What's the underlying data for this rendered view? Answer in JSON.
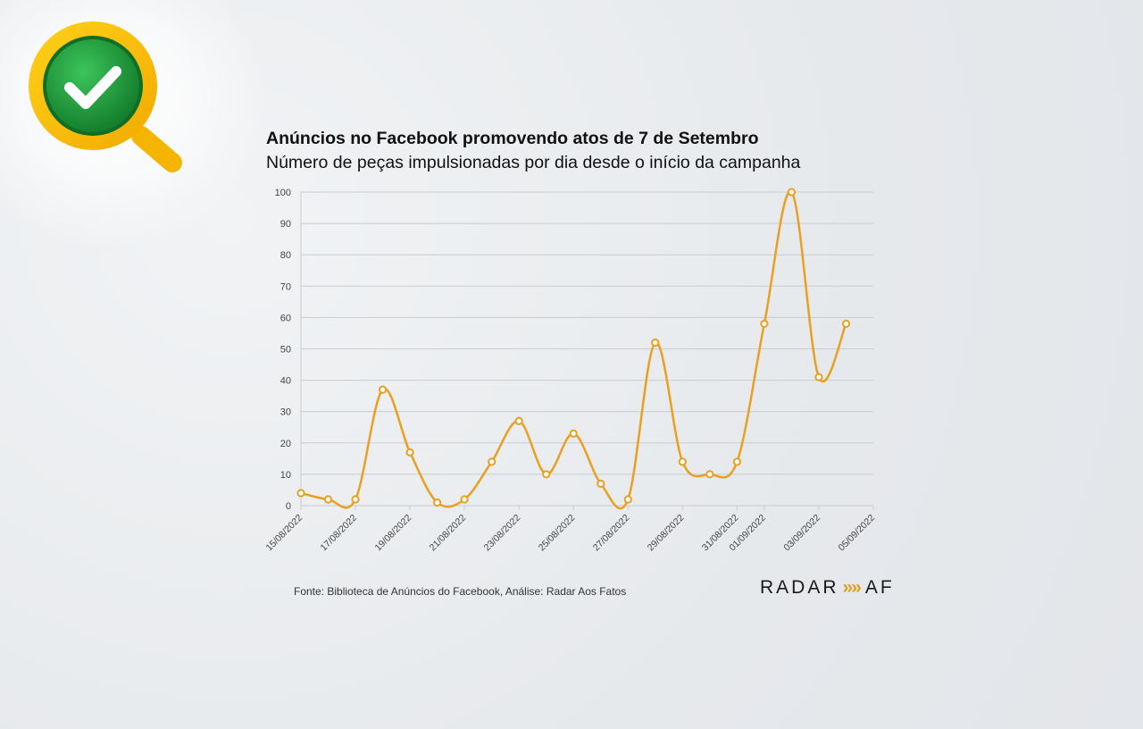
{
  "title": "Anúncios no Facebook promovendo atos de 7 de Setembro",
  "subtitle": "Número de peças impulsionadas por dia desde o início da campanha",
  "source": "Fonte: Biblioteca de Anúncios do Facebook, Análise: Radar Aos Fatos",
  "logo": {
    "text_left": "RADAR",
    "text_right": "AF",
    "accent": "#e0a020"
  },
  "badge": {
    "icon": "check-magnifier-icon",
    "ring_color": "#f5b800",
    "check_bg": "#1f9a3a"
  },
  "colors": {
    "line": "#e8a020",
    "grid": "#c9ccd0",
    "axis_text": "#444444"
  },
  "chart_data": {
    "type": "line",
    "title": "Anúncios no Facebook promovendo atos de 7 de Setembro",
    "subtitle": "Número de peças impulsionadas por dia desde o início da campanha",
    "ylim": [
      0,
      100
    ],
    "yticks": [
      "0",
      "10",
      "20",
      "30",
      "40",
      "50",
      "60",
      "70",
      "80",
      "90",
      "100"
    ],
    "xtick_labels": [
      "15/08/2022",
      "17/08/2022",
      "19/08/2022",
      "21/08/2022",
      "23/08/2022",
      "25/08/2022",
      "27/08/2022",
      "29/08/2022",
      "31/08/2022",
      "01/09/2022",
      "03/09/2022",
      "05/09/2022"
    ],
    "xtick_positions": [
      0,
      2,
      4,
      6,
      8,
      10,
      12,
      14,
      16,
      17,
      19,
      21
    ],
    "x_max": 21,
    "grid": true,
    "series": [
      {
        "x": [
          0,
          1,
          2,
          3,
          4,
          5,
          6,
          7,
          8,
          9,
          10,
          11,
          12,
          13,
          14,
          15,
          16,
          17,
          18,
          19,
          20
        ],
        "values": [
          4,
          2,
          2,
          37,
          17,
          1,
          2,
          14,
          27,
          10,
          23,
          7,
          2,
          52,
          14,
          10,
          14,
          58,
          100,
          41,
          58
        ]
      }
    ]
  }
}
